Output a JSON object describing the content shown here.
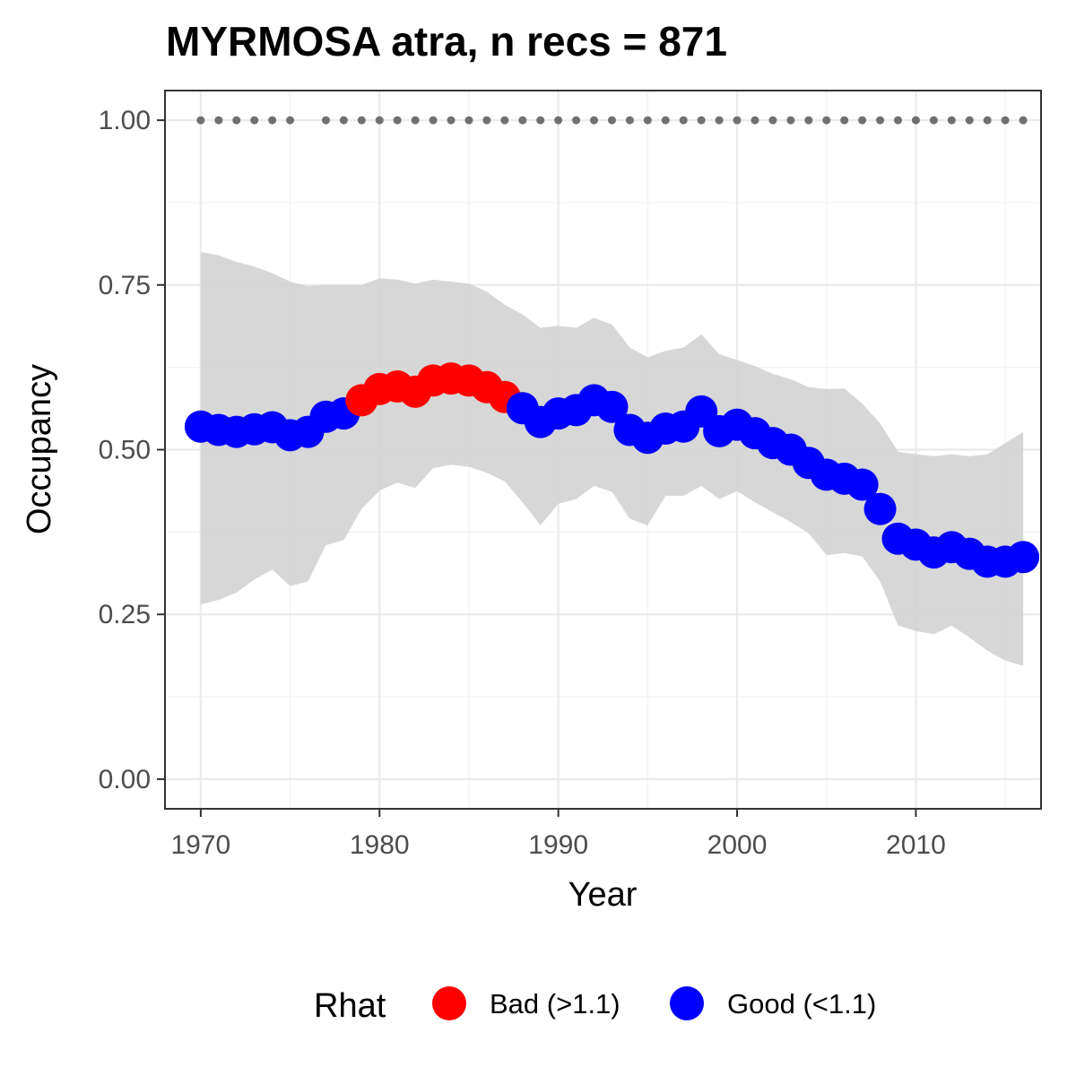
{
  "chart_data": {
    "type": "line",
    "title": "MYRMOSA atra, n recs = 871",
    "xlabel": "Year",
    "ylabel": "Occupancy",
    "xlim": [
      1968,
      2017
    ],
    "ylim": [
      -0.045,
      1.045
    ],
    "x_ticks": [
      1970,
      1980,
      1990,
      2000,
      2010
    ],
    "x_tick_labels": [
      "1970",
      "1980",
      "1990",
      "2000",
      "2010"
    ],
    "y_ticks": [
      0,
      0.25,
      0.5,
      0.75,
      1.0
    ],
    "y_tick_labels": [
      "0.00",
      "0.25",
      "0.50",
      "0.75",
      "1.00"
    ],
    "grid": true,
    "legend_position": "bottom",
    "legend": {
      "title": "Rhat",
      "entries": [
        {
          "label": "Bad (>1.1)",
          "color": "#ff0000"
        },
        {
          "label": "Good (<1.1)",
          "color": "#0000ff"
        }
      ]
    },
    "colors": {
      "bad": "#ff0000",
      "good": "#0000ff",
      "ribbon": "#d3d3d3",
      "recorded": "#707070"
    },
    "years": [
      1970,
      1971,
      1972,
      1973,
      1974,
      1975,
      1976,
      1977,
      1978,
      1979,
      1980,
      1981,
      1982,
      1983,
      1984,
      1985,
      1986,
      1987,
      1988,
      1989,
      1990,
      1991,
      1992,
      1993,
      1994,
      1995,
      1996,
      1997,
      1998,
      1999,
      2000,
      2001,
      2002,
      2003,
      2004,
      2005,
      2006,
      2007,
      2008,
      2009,
      2010,
      2011,
      2012,
      2013,
      2014,
      2015,
      2016
    ],
    "occupancy": [
      0.535,
      0.53,
      0.527,
      0.531,
      0.534,
      0.522,
      0.527,
      0.55,
      0.555,
      0.575,
      0.592,
      0.596,
      0.588,
      0.605,
      0.608,
      0.605,
      0.595,
      0.58,
      0.563,
      0.542,
      0.555,
      0.56,
      0.575,
      0.565,
      0.53,
      0.518,
      0.532,
      0.535,
      0.558,
      0.528,
      0.538,
      0.525,
      0.51,
      0.5,
      0.48,
      0.462,
      0.456,
      0.447,
      0.41,
      0.365,
      0.356,
      0.344,
      0.352,
      0.342,
      0.33,
      0.33,
      0.337
    ],
    "rhat_status": [
      "good",
      "good",
      "good",
      "good",
      "good",
      "good",
      "good",
      "good",
      "good",
      "bad",
      "bad",
      "bad",
      "bad",
      "bad",
      "bad",
      "bad",
      "bad",
      "bad",
      "good",
      "good",
      "good",
      "good",
      "good",
      "good",
      "good",
      "good",
      "good",
      "good",
      "good",
      "good",
      "good",
      "good",
      "good",
      "good",
      "good",
      "good",
      "good",
      "good",
      "good",
      "good",
      "good",
      "good",
      "good",
      "good",
      "good",
      "good",
      "good"
    ],
    "lower_ci": [
      0.265,
      0.272,
      0.283,
      0.303,
      0.318,
      0.293,
      0.3,
      0.355,
      0.363,
      0.41,
      0.438,
      0.45,
      0.442,
      0.472,
      0.477,
      0.474,
      0.465,
      0.452,
      0.42,
      0.385,
      0.418,
      0.425,
      0.445,
      0.436,
      0.395,
      0.385,
      0.43,
      0.43,
      0.445,
      0.425,
      0.437,
      0.42,
      0.405,
      0.39,
      0.373,
      0.34,
      0.343,
      0.338,
      0.3,
      0.233,
      0.225,
      0.22,
      0.233,
      0.215,
      0.195,
      0.18,
      0.172
    ],
    "upper_ci": [
      0.8,
      0.795,
      0.785,
      0.778,
      0.768,
      0.755,
      0.748,
      0.75,
      0.75,
      0.75,
      0.76,
      0.758,
      0.752,
      0.758,
      0.755,
      0.752,
      0.74,
      0.72,
      0.705,
      0.685,
      0.688,
      0.685,
      0.7,
      0.69,
      0.655,
      0.64,
      0.65,
      0.655,
      0.675,
      0.645,
      0.636,
      0.627,
      0.615,
      0.607,
      0.595,
      0.592,
      0.593,
      0.57,
      0.54,
      0.497,
      0.493,
      0.49,
      0.493,
      0.49,
      0.493,
      0.51,
      0.527
    ],
    "recorded_years": [
      1970,
      1971,
      1972,
      1973,
      1974,
      1975,
      1977,
      1978,
      1979,
      1980,
      1981,
      1982,
      1983,
      1984,
      1985,
      1986,
      1987,
      1988,
      1989,
      1990,
      1991,
      1992,
      1993,
      1994,
      1995,
      1996,
      1997,
      1998,
      1999,
      2000,
      2001,
      2002,
      2003,
      2004,
      2005,
      2006,
      2007,
      2008,
      2009,
      2010,
      2011,
      2012,
      2013,
      2014,
      2015,
      2016
    ],
    "recorded_value": 1.0
  }
}
